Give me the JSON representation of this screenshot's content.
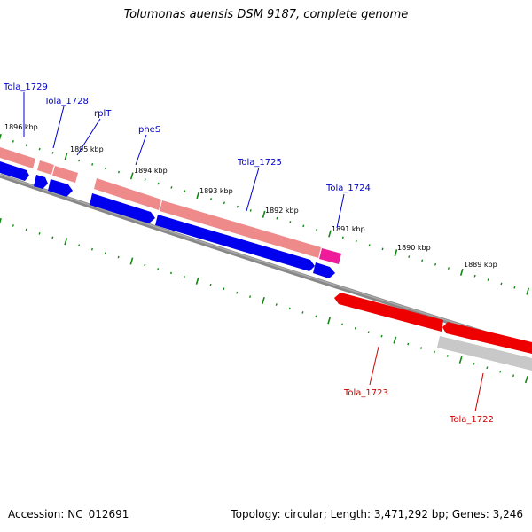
{
  "header": {
    "title": "Tolumonas auensis DSM 9187, complete genome"
  },
  "footer": {
    "accession": "Accession: NC_012691",
    "topology": "Topology: circular; Length: 3,471,292 bp; Genes: 3,246"
  },
  "colors": {
    "forward_cds": "#ef8a8a",
    "forward_rna": "#ee1c9a",
    "forward_gene": "#0000ee",
    "reverse_cds": "#c8c8c8",
    "reverse_gene": "#ee0000",
    "backbone": "#888888",
    "ticks": "#118811",
    "forward_label": "#0000cc",
    "reverse_label": "#cc0000"
  },
  "map": {
    "kbp_labels": [
      "1896 kbp",
      "1895 kbp",
      "1894 kbp",
      "1893 kbp",
      "1892 kbp",
      "1891 kbp",
      "1890 kbp",
      "1889 kbp"
    ],
    "forward_labels": [
      "Tola_1729",
      "Tola_1728",
      "rplT",
      "pheS",
      "Tola_1725",
      "Tola_1724"
    ],
    "reverse_labels": [
      "Tola_1723",
      "Tola_1722"
    ]
  }
}
